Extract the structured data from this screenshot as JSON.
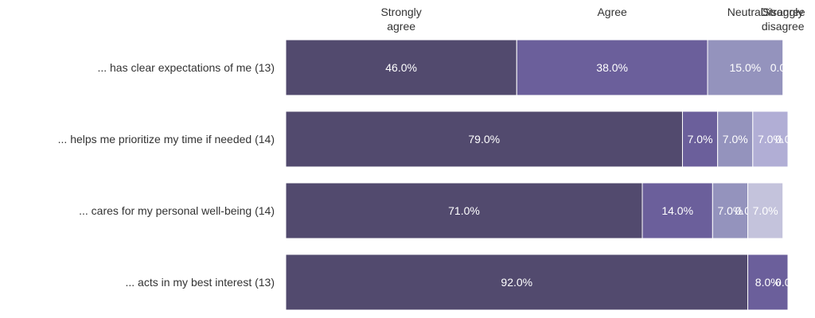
{
  "chart_data": {
    "type": "bar",
    "orientation": "horizontal",
    "stacked": true,
    "legend_placement": "top",
    "grid": false,
    "xlim": [
      0,
      100
    ],
    "categories": [
      "... has clear expectations of me (13)",
      "... helps me prioritize my time if needed (14)",
      "... cares for my personal well-being (14)",
      "... acts in my best interest (13)"
    ],
    "series": [
      {
        "name": "Strongly agree",
        "header_lines": [
          "Strongly",
          "agree"
        ],
        "color": "#524a6e",
        "values": [
          46,
          79,
          71,
          92
        ],
        "labels": [
          "46.0%",
          "79.0%",
          "71.0%",
          "92.0%"
        ]
      },
      {
        "name": "Agree",
        "header_lines": [
          "Agree"
        ],
        "color": "#6b5f9b",
        "values": [
          38,
          7,
          14,
          8
        ],
        "labels": [
          "38.0%",
          "7.0%",
          "14.0%",
          "8.0%"
        ]
      },
      {
        "name": "Neutral",
        "header_lines": [
          "Neutral"
        ],
        "color": "#9493bd",
        "values": [
          15,
          7,
          7,
          0
        ],
        "labels": [
          "15.0%",
          "7.0%",
          "7.0%",
          ""
        ]
      },
      {
        "name": "Disagree",
        "header_lines": [
          "Disagree"
        ],
        "color": "#b1aed5",
        "values": [
          0,
          7,
          0,
          0
        ],
        "labels": [
          "",
          "7.0%",
          "0.0%",
          ""
        ]
      },
      {
        "name": "Strongly disagree",
        "header_lines": [
          "Strongly",
          "disagree"
        ],
        "color": "#c4c3dc",
        "values": [
          0,
          0,
          7,
          0
        ],
        "labels": [
          "0.0%",
          "0.0%",
          "7.0%",
          "0.0%"
        ]
      }
    ]
  }
}
